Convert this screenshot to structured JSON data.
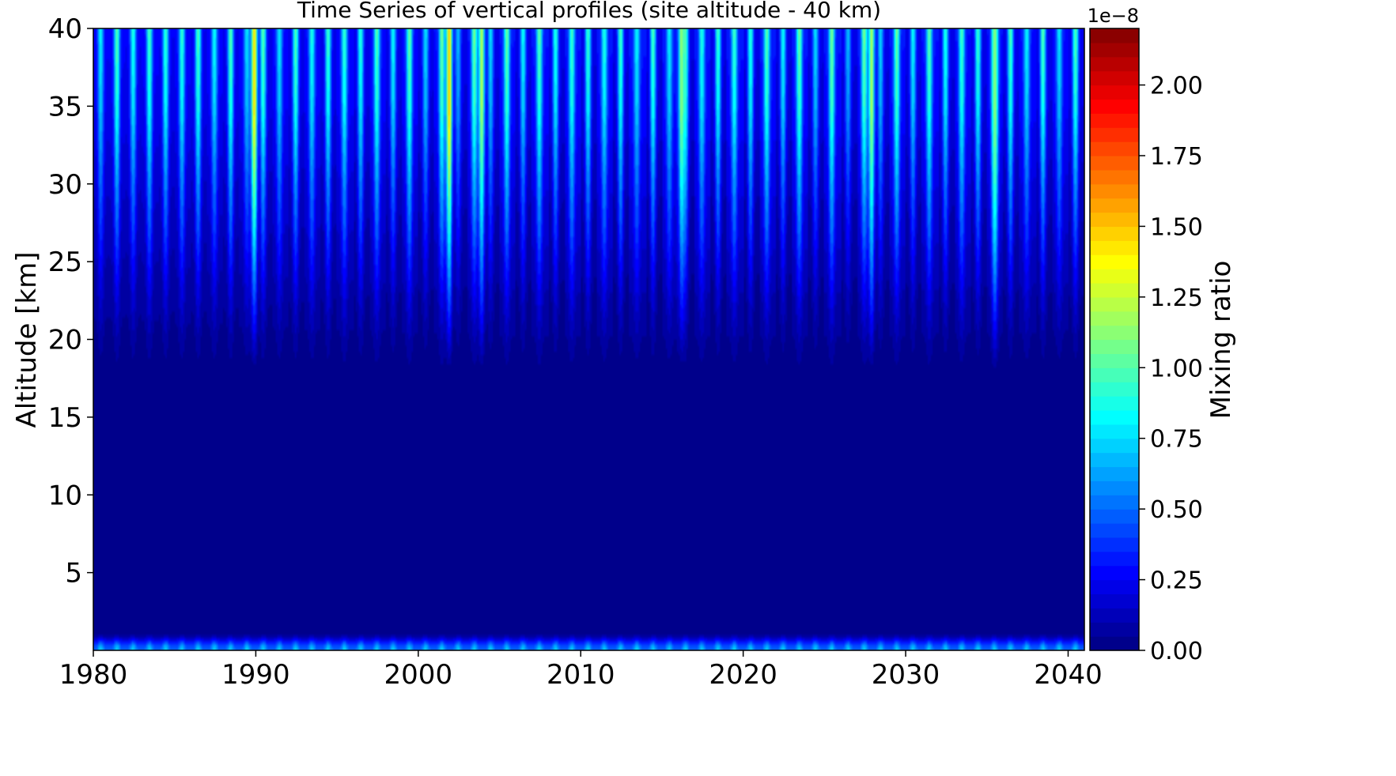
{
  "chart_data": {
    "type": "heatmap",
    "title": "Time Series of vertical profiles (site altitude - 40 km)",
    "xlabel": "",
    "ylabel": "Altitude [km]",
    "xlim": [
      1980,
      2041
    ],
    "ylim": [
      0,
      40
    ],
    "x_ticks": [
      1980,
      1990,
      2000,
      2010,
      2020,
      2030,
      2040
    ],
    "y_ticks": [
      5,
      10,
      15,
      20,
      25,
      30,
      35,
      40
    ],
    "grid": false,
    "colormap": "jet",
    "colorbar": {
      "label": "Mixing ratio",
      "offset_text": "1e−8",
      "range": [
        0,
        2.2
      ],
      "ticks": [
        "0.00",
        "0.25",
        "0.50",
        "0.75",
        "1.00",
        "1.25",
        "1.50",
        "1.75",
        "2.00"
      ],
      "levels": 44
    },
    "seasonal_cycles_per_year": 1,
    "mean_profile": [
      {
        "altitude": 0.2,
        "value": 0.6
      },
      {
        "altitude": 1,
        "value": 0.03
      },
      {
        "altitude": 17,
        "value": 0.01
      },
      {
        "altitude": 20,
        "value": 0.1
      },
      {
        "altitude": 25,
        "value": 0.3
      },
      {
        "altitude": 30,
        "value": 0.5
      },
      {
        "altitude": 35,
        "value": 0.72
      },
      {
        "altitude": 40,
        "value": 0.82
      }
    ],
    "peak_events": [
      {
        "year": 1989.9,
        "max_value": 1.45
      },
      {
        "year": 2001.9,
        "max_value": 1.5
      },
      {
        "year": 2003.9,
        "max_value": 1.2
      },
      {
        "year": 2016.2,
        "max_value": 1.15
      },
      {
        "year": 2027.9,
        "max_value": 1.2
      },
      {
        "year": 2035.5,
        "max_value": 1.1
      }
    ]
  }
}
